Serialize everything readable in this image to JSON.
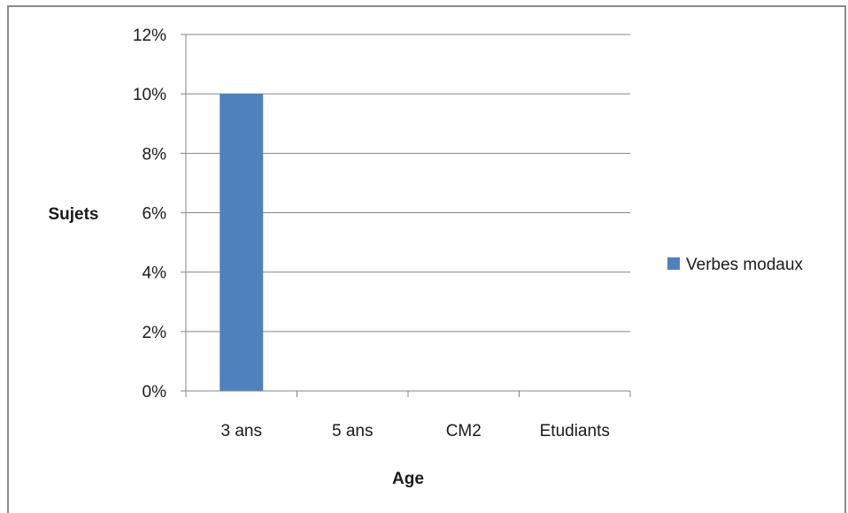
{
  "chart_data": {
    "type": "bar",
    "title": "",
    "xlabel": "Age",
    "ylabel": "Sujets",
    "categories": [
      "3 ans",
      "5 ans",
      "CM2",
      "Etudiants"
    ],
    "series": [
      {
        "name": "Verbes modaux",
        "values": [
          0.1,
          0,
          0,
          0
        ],
        "color": "#4f81bd"
      }
    ],
    "ylim": [
      0,
      0.12
    ],
    "yticks": [
      0,
      0.02,
      0.04,
      0.06,
      0.08,
      0.1,
      0.12
    ],
    "ytick_labels": [
      "0%",
      "2%",
      "4%",
      "6%",
      "8%",
      "10%",
      "12%"
    ],
    "grid": true,
    "legend_position": "right"
  }
}
